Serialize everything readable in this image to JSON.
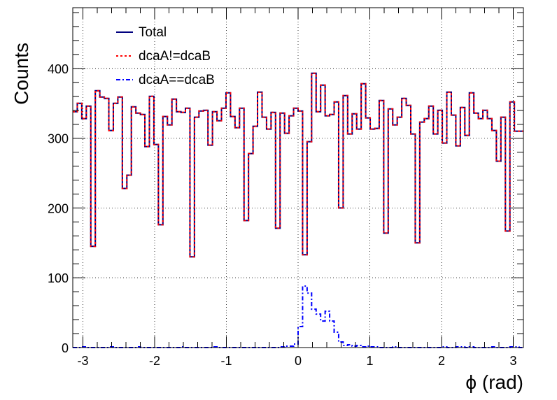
{
  "chart_data": {
    "type": "line",
    "xlabel": "ϕ (rad)",
    "ylabel": "Counts",
    "xlim": [
      -3.1416,
      3.1416
    ],
    "ylim": [
      0,
      487
    ],
    "grid": true,
    "legend_position": "top-left",
    "x_ticks": [
      "-3",
      "-2",
      "-1",
      "0",
      "1",
      "2",
      "3"
    ],
    "x_tick_values": [
      -3,
      -2,
      -1,
      0,
      1,
      2,
      3
    ],
    "y_ticks": [
      "0",
      "100",
      "200",
      "300",
      "400"
    ],
    "y_tick_values": [
      0,
      100,
      200,
      300,
      400
    ],
    "bins": 100,
    "series": [
      {
        "name": "Total",
        "color": "#00007f",
        "dash": "solid",
        "values": [
          338,
          350,
          328,
          346,
          145,
          368,
          359,
          357,
          311,
          350,
          359,
          228,
          247,
          345,
          336,
          334,
          288,
          360,
          291,
          176,
          331,
          319,
          356,
          338,
          337,
          343,
          130,
          330,
          339,
          340,
          290,
          338,
          325,
          343,
          365,
          331,
          315,
          343,
          182,
          278,
          317,
          366,
          330,
          313,
          337,
          171,
          336,
          307,
          332,
          343,
          339,
          133,
          295,
          393,
          338,
          376,
          332,
          334,
          352,
          200,
          361,
          306,
          335,
          313,
          378,
          329,
          313,
          314,
          354,
          164,
          342,
          319,
          330,
          357,
          347,
          306,
          150,
          323,
          328,
          346,
          306,
          340,
          293,
          366,
          333,
          289,
          344,
          304,
          365,
          336,
          328,
          340,
          328,
          311,
          267,
          330,
          167,
          352,
          310,
          310
        ]
      },
      {
        "name": "dcaA!=dcaB",
        "color": "#ff0000",
        "dash": "dotted",
        "values": [
          338,
          350,
          328,
          346,
          145,
          368,
          359,
          357,
          311,
          350,
          359,
          228,
          247,
          345,
          336,
          334,
          288,
          360,
          291,
          176,
          331,
          319,
          356,
          338,
          337,
          343,
          130,
          330,
          339,
          340,
          290,
          338,
          325,
          343,
          365,
          331,
          315,
          343,
          182,
          278,
          317,
          366,
          330,
          313,
          337,
          171,
          336,
          307,
          332,
          343,
          339,
          133,
          295,
          393,
          338,
          376,
          332,
          334,
          352,
          200,
          361,
          306,
          335,
          313,
          378,
          329,
          313,
          314,
          354,
          164,
          342,
          319,
          330,
          357,
          347,
          306,
          150,
          323,
          328,
          346,
          306,
          340,
          293,
          366,
          333,
          289,
          344,
          304,
          365,
          336,
          328,
          340,
          328,
          311,
          267,
          330,
          167,
          352,
          310,
          310
        ]
      },
      {
        "name": "dcaA==dcaB",
        "color": "#0000ff",
        "dash": "dashdot",
        "values": [
          0,
          0,
          1,
          0,
          0,
          0,
          0,
          0,
          1,
          0,
          0,
          0,
          0,
          0,
          1,
          0,
          0,
          0,
          0,
          0,
          0,
          0,
          0,
          0,
          1,
          0,
          0,
          0,
          0,
          0,
          0,
          1,
          0,
          0,
          0,
          0,
          0,
          0,
          0,
          0,
          0,
          0,
          0,
          0,
          0,
          0,
          1,
          2,
          2,
          5,
          30,
          88,
          78,
          55,
          48,
          38,
          52,
          38,
          22,
          8,
          3,
          4,
          2,
          3,
          1,
          2,
          1,
          1,
          0,
          0,
          0,
          1,
          0,
          0,
          0,
          0,
          0,
          0,
          0,
          0,
          0,
          0,
          1,
          0,
          0,
          1,
          1,
          0,
          1,
          0,
          0,
          0,
          0,
          1,
          0,
          0,
          0,
          1,
          1,
          0
        ]
      }
    ]
  }
}
